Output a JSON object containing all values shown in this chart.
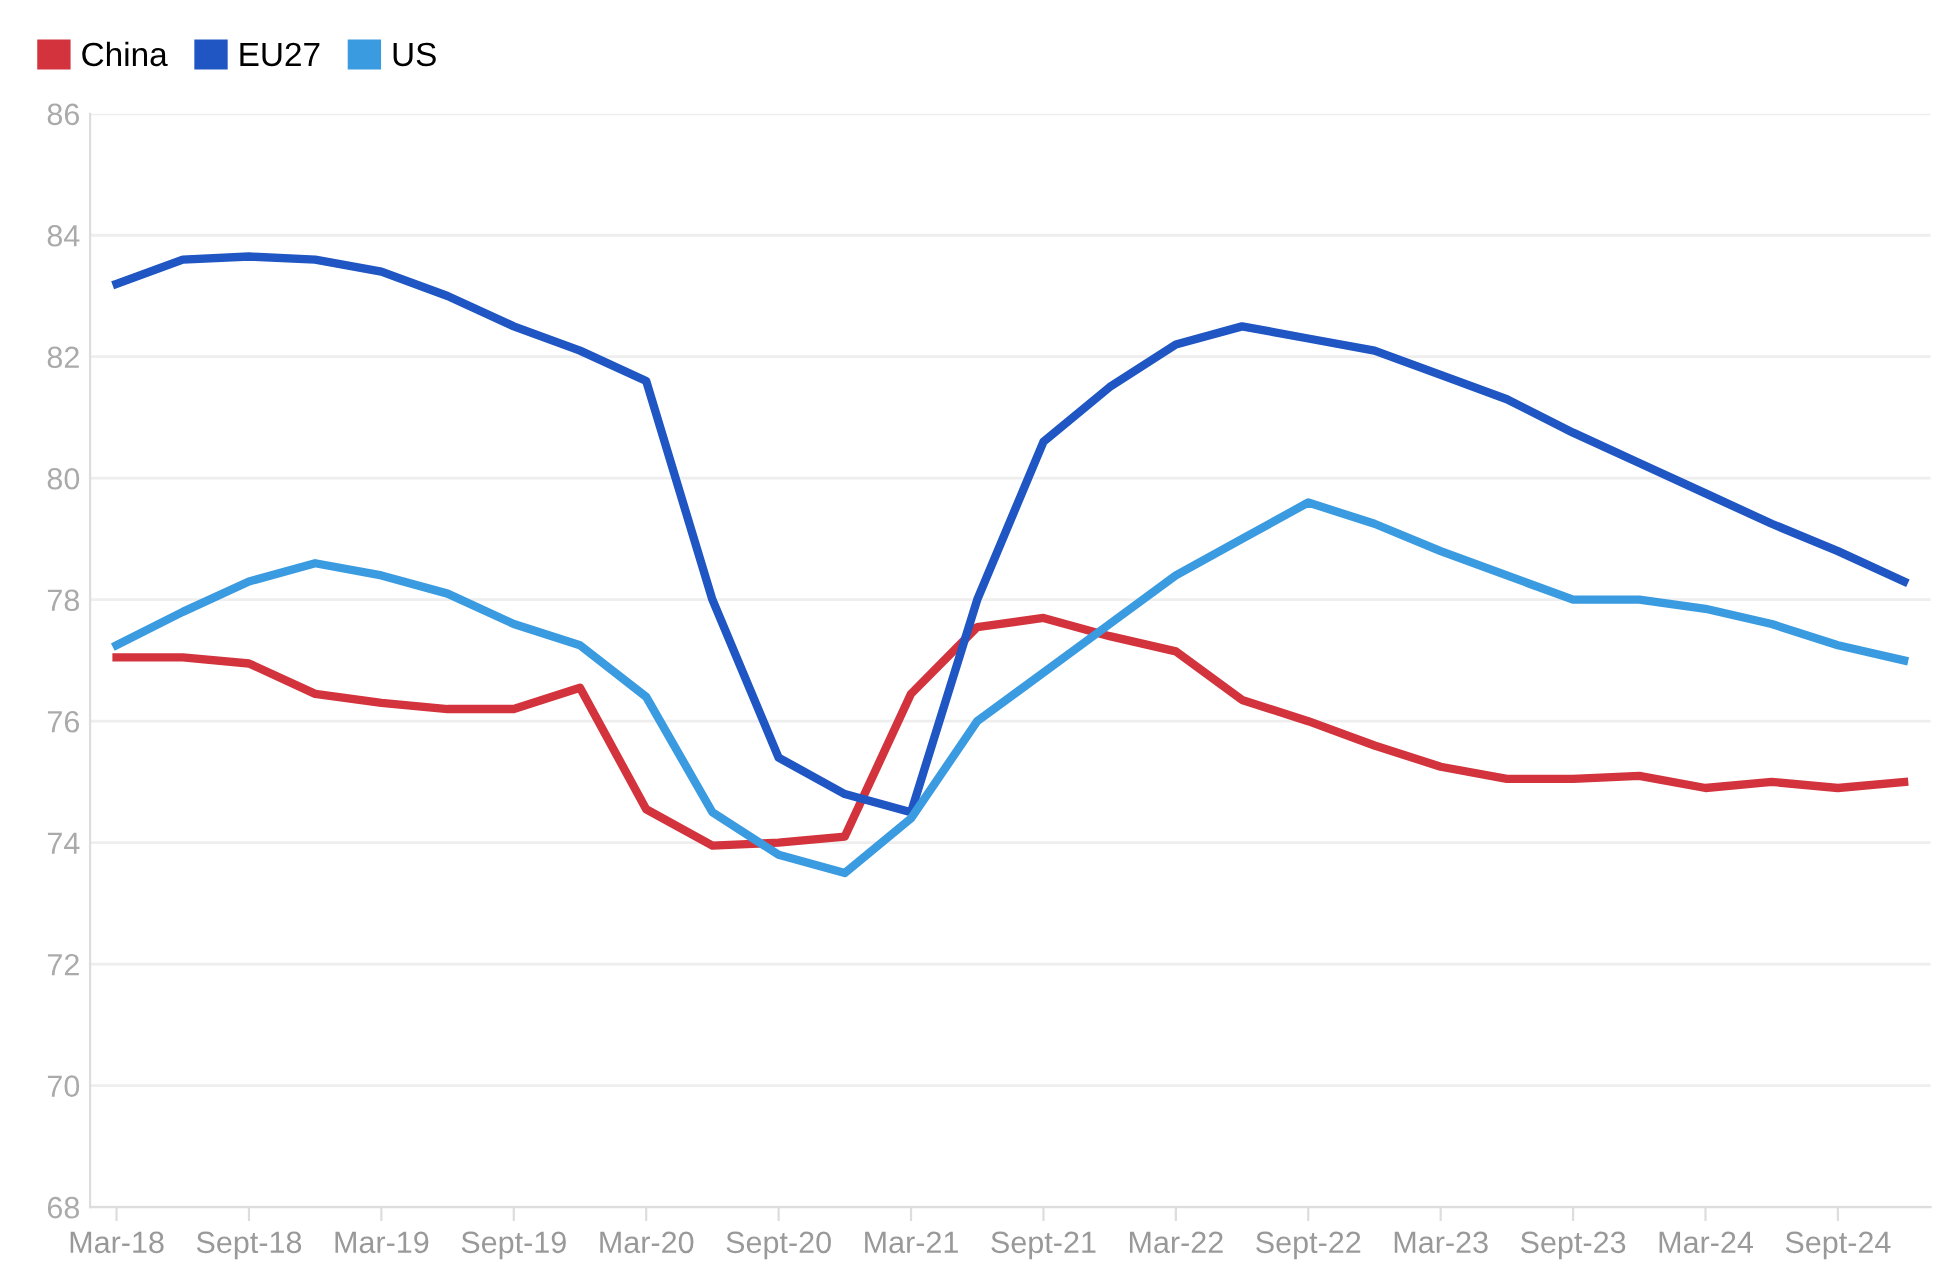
{
  "chart_data": {
    "type": "line",
    "categories": [
      "Mar-18",
      null,
      "Sept-18",
      null,
      "Mar-19",
      null,
      "Sept-19",
      null,
      "Mar-20",
      null,
      "Sept-20",
      null,
      "Mar-21",
      null,
      "Sept-21",
      null,
      "Mar-22",
      null,
      "Sept-22",
      null,
      "Mar-23",
      null,
      "Sept-23",
      null,
      "Mar-24",
      null,
      "Sept-24",
      null
    ],
    "series": [
      {
        "name": "China",
        "color": "#d3333c",
        "values": [
          77.05,
          77.05,
          76.95,
          76.45,
          76.3,
          76.2,
          76.2,
          76.55,
          74.55,
          73.95,
          74.0,
          74.1,
          76.45,
          77.55,
          77.7,
          77.4,
          77.15,
          76.35,
          76.0,
          75.6,
          75.25,
          75.05,
          75.05,
          75.1,
          74.9,
          75.0,
          74.9,
          75.0
        ]
      },
      {
        "name": "EU27",
        "color": "#1f56c3",
        "values": [
          83.2,
          83.6,
          83.65,
          83.6,
          83.4,
          83.0,
          82.5,
          82.1,
          81.6,
          78.0,
          75.4,
          74.8,
          74.5,
          78.0,
          80.6,
          81.5,
          82.2,
          82.5,
          82.3,
          82.1,
          81.7,
          81.3,
          80.75,
          80.25,
          79.75,
          79.25,
          78.8,
          78.3
        ]
      },
      {
        "name": "US",
        "color": "#3a9be0",
        "values": [
          77.25,
          77.8,
          78.3,
          78.6,
          78.4,
          78.1,
          77.6,
          77.25,
          76.4,
          74.5,
          73.8,
          73.5,
          74.4,
          76.0,
          76.8,
          77.6,
          78.4,
          79.0,
          79.6,
          79.25,
          78.8,
          78.4,
          78.0,
          78.0,
          77.85,
          77.6,
          77.25,
          77.0
        ]
      }
    ],
    "ylim": [
      68,
      86
    ],
    "yticks": [
      68,
      70,
      72,
      74,
      76,
      78,
      80,
      82,
      84,
      86
    ],
    "grid": "y",
    "legend": "top left",
    "marker": "none",
    "line_style": "solid"
  }
}
